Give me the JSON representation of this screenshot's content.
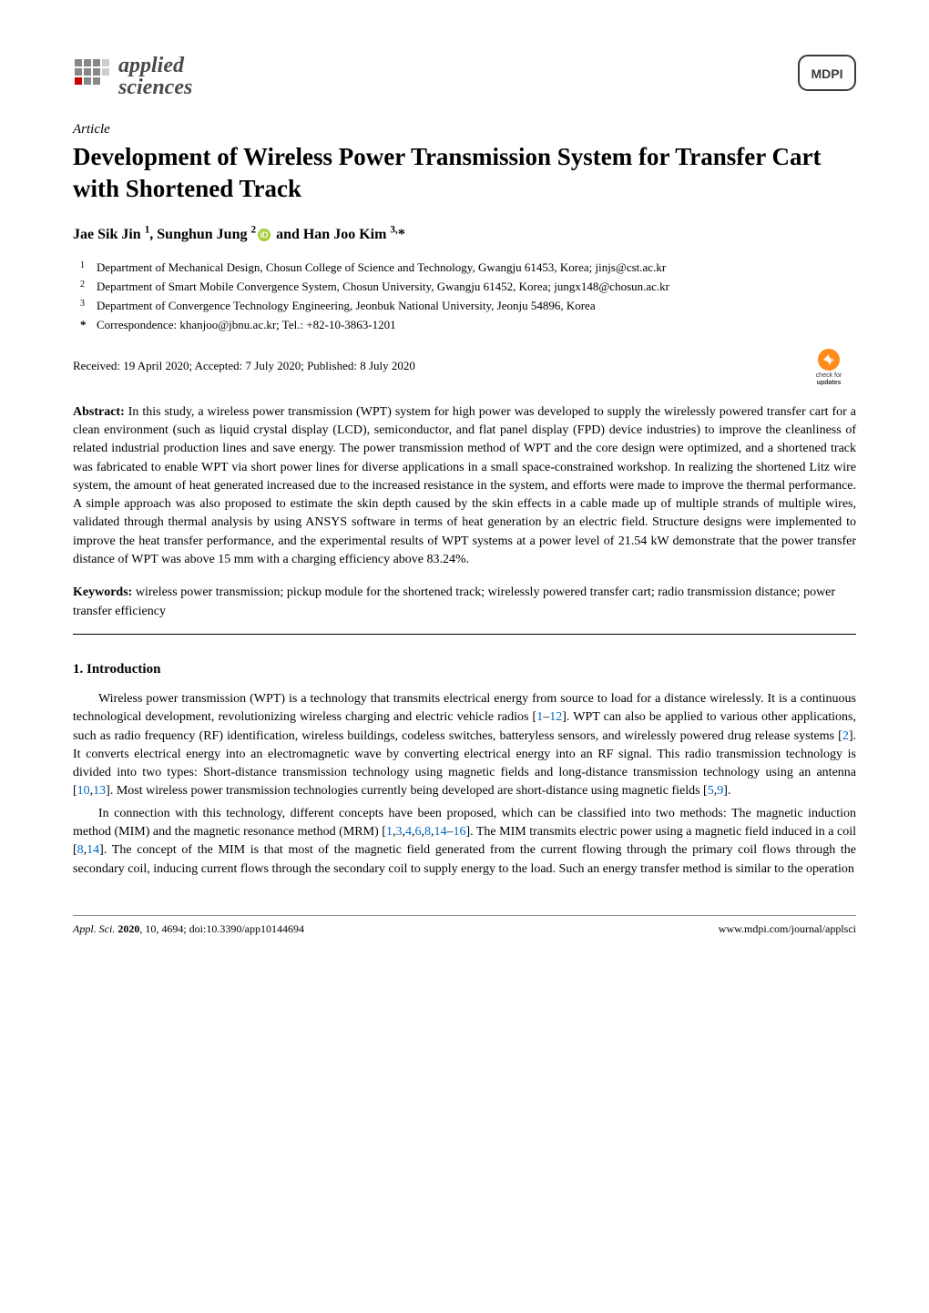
{
  "journal_logo": {
    "line1": "applied",
    "line2": "sciences",
    "grid_color": "#888888",
    "text_color": "#4a4a4a"
  },
  "publisher_logo": {
    "text": "MDPI",
    "border_color": "#3a3a3a"
  },
  "article_type": "Article",
  "title": "Development of Wireless Power Transmission System for Transfer Cart with Shortened Track",
  "authors_html": "Jae Sik Jin <sup>1</sup>, Sunghun Jung <sup>2</sup><span class='orcid-slot'></span> and Han Joo Kim <sup>3,</sup>*",
  "orcid_color": "#a6ce39",
  "affiliations": [
    {
      "num": "1",
      "text": "Department of Mechanical Design, Chosun College of Science and Technology, Gwangju 61453, Korea; jinjs@cst.ac.kr"
    },
    {
      "num": "2",
      "text": "Department of Smart Mobile Convergence System, Chosun University, Gwangju 61452, Korea; jungx148@chosun.ac.kr"
    },
    {
      "num": "3",
      "text": "Department of Convergence Technology Engineering, Jeonbuk National University, Jeonju 54896, Korea"
    },
    {
      "num": "*",
      "text": "Correspondence: khanjoo@jbnu.ac.kr; Tel.: +82-10-3863-1201"
    }
  ],
  "dates_line": "Received: 19 April 2020; Accepted: 7 July 2020; Published: 8 July 2020",
  "updates_badge": {
    "text1": "check for",
    "text2": "updates",
    "circle_color": "#ff8c1a",
    "arrow_color": "#ffffff"
  },
  "abstract_label": "Abstract:",
  "abstract_text": " In this study, a wireless power transmission (WPT) system for high power was developed to supply the wirelessly powered transfer cart for a clean environment (such as liquid crystal display (LCD), semiconductor, and flat panel display (FPD) device industries) to improve the cleanliness of related industrial production lines and save energy. The power transmission method of WPT and the core design were optimized, and a shortened track was fabricated to enable WPT via short power lines for diverse applications in a small space-constrained workshop. In realizing the shortened Litz wire system, the amount of heat generated increased due to the increased resistance in the system, and efforts were made to improve the thermal performance. A simple approach was also proposed to estimate the skin depth caused by the skin effects in a cable made up of multiple strands of multiple wires, validated through thermal analysis by using ANSYS software in terms of heat generation by an electric field. Structure designs were implemented to improve the heat transfer performance, and the experimental results of WPT systems at a power level of 21.54 kW demonstrate that the power transfer distance of WPT was above 15 mm with a charging efficiency above 83.24%.",
  "keywords_label": "Keywords:",
  "keywords_text": " wireless power transmission; pickup module for the shortened track; wirelessly powered transfer cart; radio transmission distance; power transfer efficiency",
  "section1_heading": "1. Introduction",
  "para1": "Wireless power transmission (WPT) is a technology that transmits electrical energy from source to load for a distance wirelessly. It is a continuous technological development, revolutionizing wireless charging and electric vehicle radios [<span class='cite'>1</span>–<span class='cite'>12</span>]. WPT can also be applied to various other applications, such as radio frequency (RF) identification, wireless buildings, codeless switches, batteryless sensors, and wirelessly powered drug release systems [<span class='cite'>2</span>]. It converts electrical energy into an electromagnetic wave by converting electrical energy into an RF signal. This radio transmission technology is divided into two types: Short-distance transmission technology using magnetic fields and long-distance transmission technology using an antenna [<span class='cite'>10</span>,<span class='cite'>13</span>]. Most wireless power transmission technologies currently being developed are short-distance using magnetic fields [<span class='cite'>5</span>,<span class='cite'>9</span>].",
  "para2": "In connection with this technology, different concepts have been proposed, which can be classified into two methods: The magnetic induction method (MIM) and the magnetic resonance method (MRM) [<span class='cite'>1</span>,<span class='cite'>3</span>,<span class='cite'>4</span>,<span class='cite'>6</span>,<span class='cite'>8</span>,<span class='cite'>14</span>–<span class='cite'>16</span>]. The MIM transmits electric power using a magnetic field induced in a coil [<span class='cite'>8</span>,<span class='cite'>14</span>]. The concept of the MIM is that most of the magnetic field generated from the current flowing through the primary coil flows through the secondary coil, inducing current flows through the secondary coil to supply energy to the load. Such an energy transfer method is similar to the operation",
  "footer": {
    "left_italic": "Appl. Sci. ",
    "left_bold": "2020",
    "left_rest": ", 10, 4694; doi:10.3390/app10144694",
    "right": "www.mdpi.com/journal/applsci"
  },
  "citation_color": "#0066cc"
}
